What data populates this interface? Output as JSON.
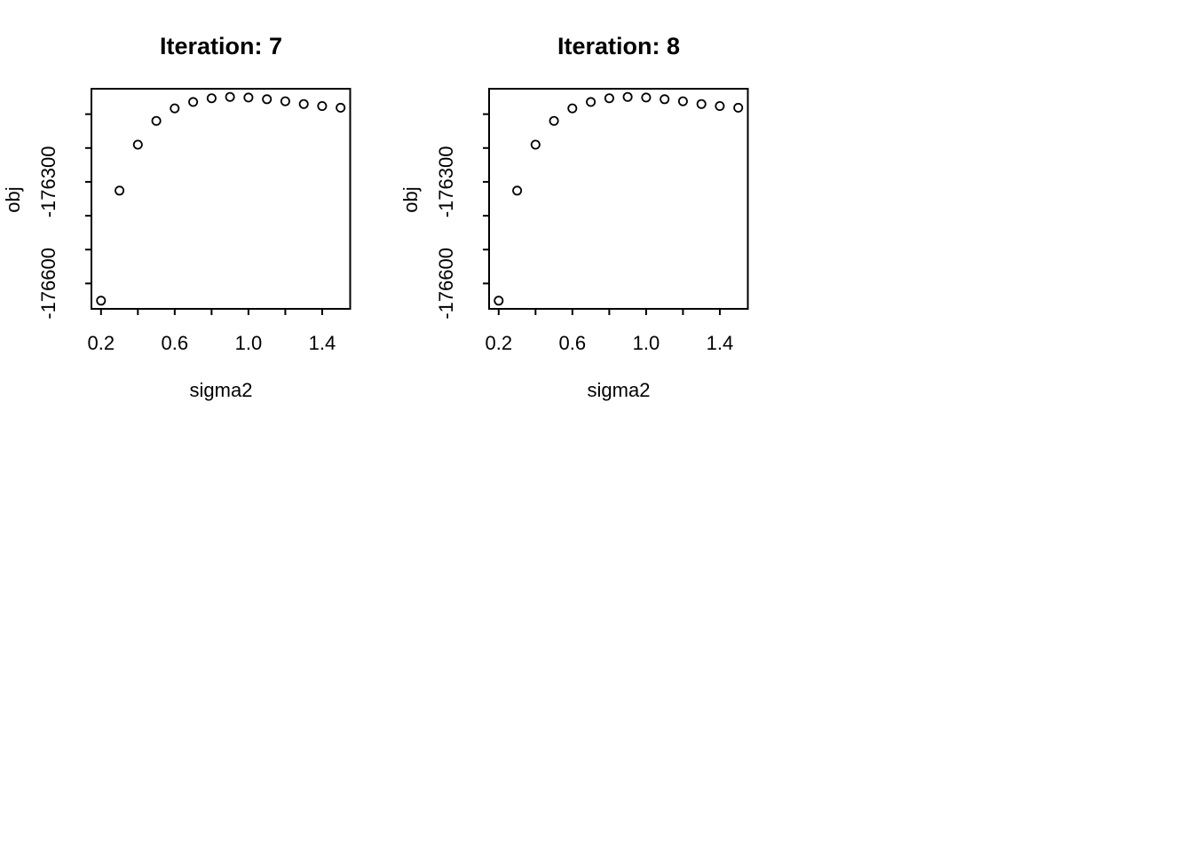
{
  "page": {
    "background_color": "#ffffff",
    "foreground_color": "#000000"
  },
  "chart_data": [
    {
      "type": "scatter",
      "title": "Iteration: 7",
      "xlabel": "sigma2",
      "ylabel": "obj",
      "marker": "open-circle",
      "color": "#000000",
      "grid": false,
      "x": [
        0.2,
        0.3,
        0.4,
        0.5,
        0.6,
        0.7,
        0.8,
        0.9,
        1.0,
        1.1,
        1.2,
        1.3,
        1.4,
        1.5
      ],
      "y": [
        -176651,
        -176326,
        -176190,
        -176120,
        -176083,
        -176064,
        -176053,
        -176049,
        -176051,
        -176056,
        -176062,
        -176070,
        -176076,
        -176081
      ],
      "xlim": [
        0.148,
        1.552
      ],
      "ylim": [
        -176675,
        -176025
      ],
      "xticks": [
        0.2,
        0.4,
        0.6,
        0.8,
        1.0,
        1.2,
        1.4
      ],
      "xtick_labels": [
        "0.2",
        "",
        "0.6",
        "",
        "1.0",
        "",
        "1.4"
      ],
      "yticks": [
        -176600,
        -176500,
        -176400,
        -176300,
        -176200,
        -176100
      ],
      "ytick_labels": [
        "-176600",
        "",
        "",
        "-176300",
        "",
        ""
      ]
    },
    {
      "type": "scatter",
      "title": "Iteration: 8",
      "xlabel": "sigma2",
      "ylabel": "obj",
      "marker": "open-circle",
      "color": "#000000",
      "grid": false,
      "x": [
        0.2,
        0.3,
        0.4,
        0.5,
        0.6,
        0.7,
        0.8,
        0.9,
        1.0,
        1.1,
        1.2,
        1.3,
        1.4,
        1.5
      ],
      "y": [
        -176651,
        -176326,
        -176190,
        -176120,
        -176083,
        -176064,
        -176053,
        -176049,
        -176051,
        -176056,
        -176062,
        -176070,
        -176076,
        -176081
      ],
      "xlim": [
        0.148,
        1.552
      ],
      "ylim": [
        -176675,
        -176025
      ],
      "xticks": [
        0.2,
        0.4,
        0.6,
        0.8,
        1.0,
        1.2,
        1.4
      ],
      "xtick_labels": [
        "0.2",
        "",
        "0.6",
        "",
        "1.0",
        "",
        "1.4"
      ],
      "yticks": [
        -176600,
        -176500,
        -176400,
        -176300,
        -176200,
        -176100
      ],
      "ytick_labels": [
        "-176600",
        "",
        "",
        "-176300",
        "",
        ""
      ]
    }
  ]
}
